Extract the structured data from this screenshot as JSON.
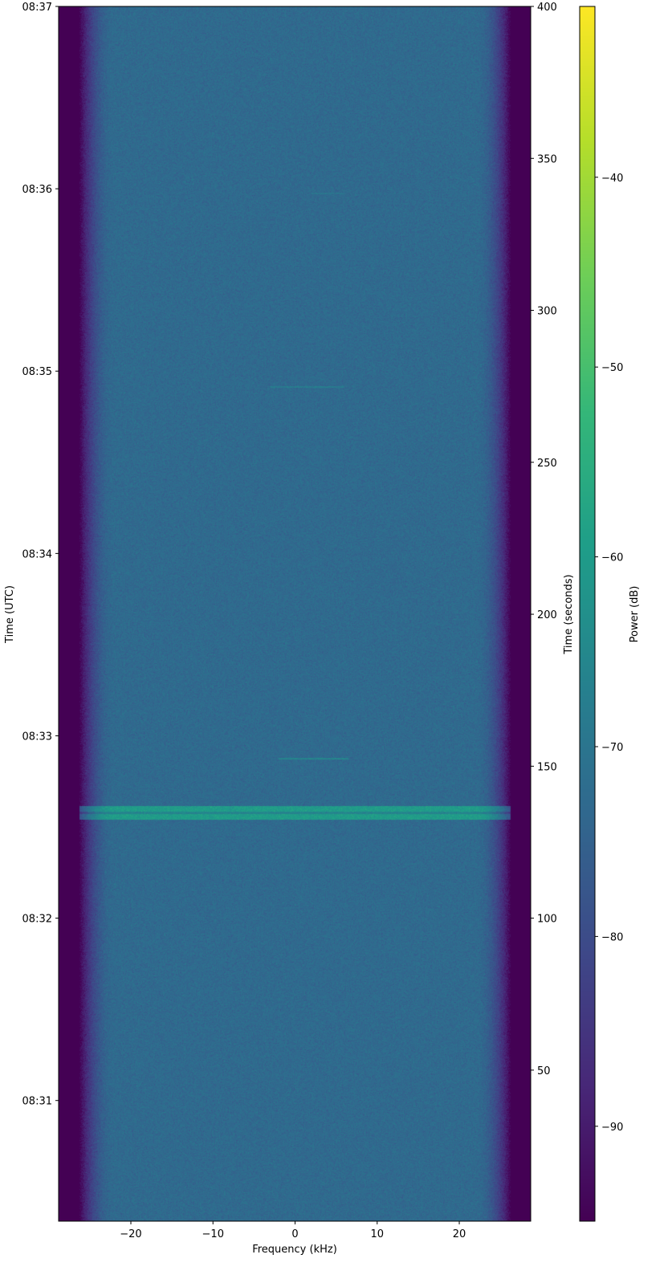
{
  "chart_data": {
    "type": "heatmap",
    "xlabel": "Frequency (kHz)",
    "ylabel_left": "Time (UTC)",
    "ylabel_right": "Time (seconds)",
    "colorbar_label": "Power (dB)",
    "colormap": "viridis",
    "xlim": [
      -28.8,
      28.7
    ],
    "ylim_seconds": [
      0.3,
      400
    ],
    "clim_db": [
      -95,
      -31
    ],
    "x_ticks": [
      -20,
      -10,
      0,
      10,
      20
    ],
    "x_tick_labels": [
      "−20",
      "−10",
      "0",
      "10",
      "20"
    ],
    "y_right_ticks": [
      50,
      100,
      150,
      200,
      250,
      300,
      350,
      400
    ],
    "y_right_tick_labels": [
      "50",
      "100",
      "150",
      "200",
      "250",
      "300",
      "350",
      "400"
    ],
    "y_left_ticks_seconds": [
      40,
      100,
      160,
      220,
      280,
      340,
      400
    ],
    "y_left_tick_labels": [
      "08:31",
      "08:32",
      "08:33",
      "08:34",
      "08:35",
      "08:36",
      "08:37"
    ],
    "colorbar_ticks": [
      -90,
      -80,
      -70,
      -60,
      -50,
      -40
    ],
    "colorbar_tick_labels": [
      "−90",
      "−80",
      "−70",
      "−60",
      "−50",
      "−40"
    ],
    "features": {
      "noise_floor_db": -73,
      "passband_edge_khz": 22,
      "rolloff_floor_db": -95,
      "strong_band": {
        "t_start_s": 132.3,
        "t_end_s": 136.8,
        "power_db": -60
      },
      "weak_lines": [
        {
          "t_s": 152.5,
          "f_start_khz": -2,
          "f_end_khz": 6.5,
          "power_db": -66
        },
        {
          "t_s": 274.8,
          "f_start_khz": -3,
          "f_end_khz": 6,
          "power_db": -68
        },
        {
          "t_s": 338.5,
          "f_start_khz": 2,
          "f_end_khz": 6,
          "power_db": -70
        }
      ]
    }
  }
}
